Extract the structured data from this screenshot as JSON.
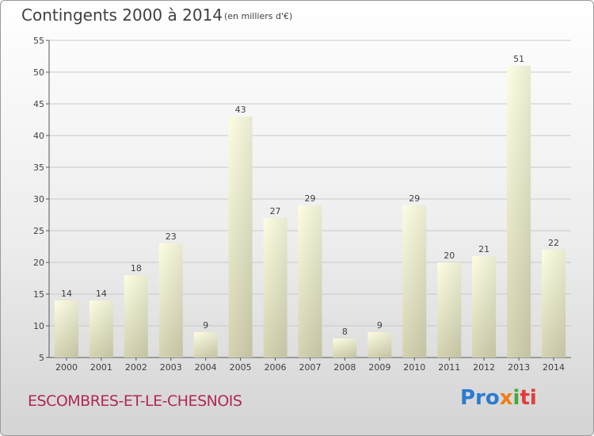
{
  "header": {
    "title": "Contingents 2000 à 2014",
    "subtitle": "(en milliers d'€)"
  },
  "footer": {
    "town": "ESCOMBRES-ET-LE-CHESNOIS",
    "logo_parts": [
      "Pro",
      "x",
      "i",
      "ti"
    ]
  },
  "chart_data": {
    "type": "bar",
    "title": "Contingents 2000 à 2014",
    "subtitle": "(en milliers d'€)",
    "categories": [
      "2000",
      "2001",
      "2002",
      "2003",
      "2004",
      "2005",
      "2006",
      "2007",
      "2008",
      "2009",
      "2010",
      "2011",
      "2012",
      "2013",
      "2014"
    ],
    "values": [
      14,
      14,
      18,
      23,
      9,
      43,
      27,
      29,
      8,
      9,
      29,
      20,
      21,
      51,
      22
    ],
    "ylim": [
      5,
      55
    ],
    "yticks": [
      5,
      10,
      15,
      20,
      25,
      30,
      35,
      40,
      45,
      50,
      55
    ],
    "grid": true,
    "bar_color": "#f6f6d2",
    "bar_shade": "#d8d8b4"
  }
}
